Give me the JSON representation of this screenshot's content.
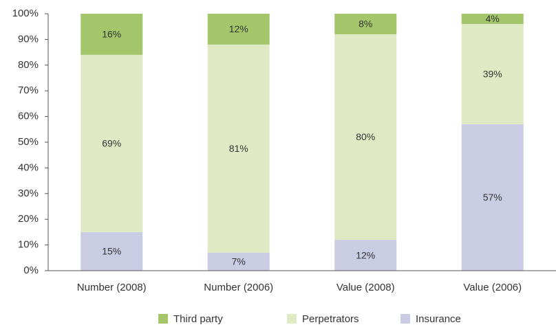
{
  "chart_data": {
    "type": "stacked_bar",
    "categories": [
      "Number (2008)",
      "Number (2006)",
      "Value (2008)",
      "Value (2006)"
    ],
    "series": [
      {
        "name": "Third party",
        "color": "#a3c66b",
        "values": [
          16,
          12,
          8,
          4
        ],
        "value_labels": [
          "16%",
          "12%",
          "8%",
          "4%"
        ]
      },
      {
        "name": "Perpetrators",
        "color": "#dfeac5",
        "values": [
          69,
          81,
          80,
          39
        ],
        "value_labels": [
          "69%",
          "81%",
          "80%",
          "39%"
        ]
      },
      {
        "name": "Insurance",
        "color": "#c9cce3",
        "values": [
          15,
          7,
          12,
          57
        ],
        "value_labels": [
          "15%",
          "7%",
          "12%",
          "57%"
        ]
      }
    ],
    "ylim": [
      0,
      100
    ],
    "yticks": [
      {
        "value": 0,
        "label": "0%"
      },
      {
        "value": 10,
        "label": "10%"
      },
      {
        "value": 20,
        "label": "20%"
      },
      {
        "value": 30,
        "label": "30%"
      },
      {
        "value": 40,
        "label": "40%"
      },
      {
        "value": 50,
        "label": "50%"
      },
      {
        "value": 60,
        "label": "60%"
      },
      {
        "value": 70,
        "label": "70%"
      },
      {
        "value": 80,
        "label": "80%"
      },
      {
        "value": 90,
        "label": "90%"
      },
      {
        "value": 100,
        "label": "100%"
      }
    ],
    "legend": "bottom"
  }
}
